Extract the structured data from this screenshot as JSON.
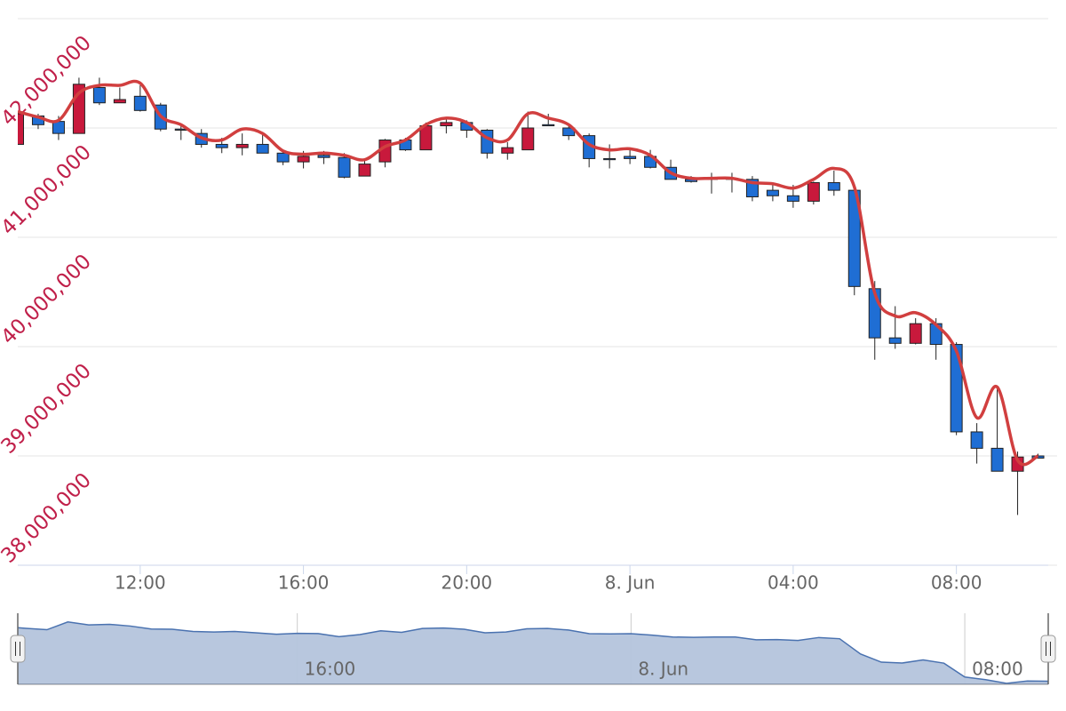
{
  "chart_data": {
    "type": "candlestick",
    "x": [
      9,
      9.5,
      10,
      10.5,
      11,
      11.5,
      12,
      12.5,
      13,
      13.5,
      14,
      14.5,
      15,
      15.5,
      16,
      16.5,
      17,
      17.5,
      18,
      18.5,
      19,
      19.5,
      20,
      20.5,
      21,
      21.5,
      22,
      22.5,
      23,
      23.5,
      24,
      24.5,
      25,
      25.5,
      26,
      26.5,
      27,
      27.5,
      28,
      28.5,
      29,
      29.5,
      30,
      30.5,
      31,
      31.5,
      32,
      32.5,
      33,
      33.5,
      34
    ],
    "open": [
      41850000,
      42110000,
      42060000,
      41950000,
      42370000,
      42230000,
      42290000,
      42210000,
      41990000,
      41950000,
      41850000,
      41820000,
      41850000,
      41770000,
      41690000,
      41750000,
      41730000,
      41560000,
      41690000,
      41890000,
      41800000,
      42020000,
      42050000,
      41980000,
      41770000,
      41800000,
      42030000,
      42000000,
      41930000,
      41720000,
      41740000,
      41740000,
      41640000,
      41530000,
      41540000,
      41540000,
      41530000,
      41430000,
      41380000,
      41330000,
      41500000,
      41430000,
      40530000,
      40080000,
      40030000,
      40210000,
      40020000,
      39220000,
      39070000,
      38860000,
      39000000
    ],
    "high": [
      42150000,
      42130000,
      42110000,
      42460000,
      42460000,
      42370000,
      42390000,
      42230000,
      42030000,
      41990000,
      41910000,
      41950000,
      41950000,
      41790000,
      41790000,
      41790000,
      41770000,
      41710000,
      41900000,
      41910000,
      42050000,
      42100000,
      42070000,
      41990000,
      41870000,
      42150000,
      42130000,
      42030000,
      41950000,
      41850000,
      41800000,
      41800000,
      41710000,
      41560000,
      41590000,
      41590000,
      41560000,
      41480000,
      41480000,
      41510000,
      41610000,
      41450000,
      40600000,
      40370000,
      40260000,
      40260000,
      40040000,
      39300000,
      39630000,
      39040000,
      39020000
    ],
    "low": [
      41850000,
      41990000,
      41890000,
      41950000,
      42210000,
      42230000,
      42150000,
      41970000,
      41890000,
      41820000,
      41770000,
      41750000,
      41770000,
      41660000,
      41630000,
      41670000,
      41540000,
      41560000,
      41640000,
      41790000,
      41800000,
      41950000,
      41910000,
      41720000,
      41710000,
      41800000,
      42020000,
      41890000,
      41640000,
      41630000,
      41670000,
      41630000,
      41530000,
      41500000,
      41400000,
      41410000,
      41330000,
      41330000,
      41270000,
      41300000,
      41380000,
      40470000,
      39880000,
      39980000,
      40020000,
      39880000,
      39190000,
      38930000,
      38860000,
      38460000,
      38980000
    ],
    "close": [
      42130000,
      42030000,
      41950000,
      42400000,
      42230000,
      42260000,
      42160000,
      41990000,
      41980000,
      41850000,
      41820000,
      41850000,
      41770000,
      41690000,
      41740000,
      41730000,
      41550000,
      41670000,
      41890000,
      41800000,
      42020000,
      42050000,
      41980000,
      41770000,
      41820000,
      42000000,
      42020000,
      41930000,
      41720000,
      41710000,
      41720000,
      41640000,
      41530000,
      41510000,
      41530000,
      41530000,
      41370000,
      41380000,
      41330000,
      41500000,
      41430000,
      40550000,
      40080000,
      40030000,
      40210000,
      40020000,
      39220000,
      39070000,
      38860000,
      38990000,
      38980000
    ],
    "up_color": "#c8193c",
    "down_color": "#1f6ed4",
    "line": {
      "color": "#d13f3f",
      "values": [
        42150000,
        42100000,
        42070000,
        42320000,
        42390000,
        42390000,
        42410000,
        42110000,
        42030000,
        41910000,
        41890000,
        41990000,
        41950000,
        41790000,
        41760000,
        41770000,
        41750000,
        41710000,
        41830000,
        41890000,
        42030000,
        42090000,
        42050000,
        41910000,
        41890000,
        42130000,
        42090000,
        42030000,
        41850000,
        41800000,
        41810000,
        41750000,
        41590000,
        41540000,
        41540000,
        41540000,
        41500000,
        41490000,
        41450000,
        41530000,
        41630000,
        41460000,
        40490000,
        40280000,
        40310000,
        40200000,
        39960000,
        39350000,
        39630000,
        38960000,
        39000000
      ]
    },
    "xlim": [
      9,
      34.25
    ],
    "xticks": [
      {
        "value": 12,
        "label": "12:00"
      },
      {
        "value": 16,
        "label": "16:00"
      },
      {
        "value": 20,
        "label": "20:00"
      },
      {
        "value": 24,
        "label": "8. Jun"
      },
      {
        "value": 28,
        "label": "04:00"
      },
      {
        "value": 32,
        "label": "08:00"
      }
    ],
    "ylim": [
      38000000,
      43000000
    ],
    "yticks": [
      {
        "value": 38000000,
        "label": "38,000,000"
      },
      {
        "value": 39000000,
        "label": "39,000,000"
      },
      {
        "value": 40000000,
        "label": "40,000,000"
      },
      {
        "value": 41000000,
        "label": "41,000,000"
      },
      {
        "value": 42000000,
        "label": "42,000,000"
      }
    ],
    "grid": true,
    "navigator": {
      "xlim": [
        9.3,
        34
      ],
      "ylim": [
        38800000,
        42900000
      ],
      "color": "#b4c4dc",
      "xticks": [
        {
          "value": 16,
          "label": "16:00"
        },
        {
          "value": 24,
          "label": "8. Jun"
        },
        {
          "value": 32,
          "label": "08:00"
        }
      ]
    }
  }
}
